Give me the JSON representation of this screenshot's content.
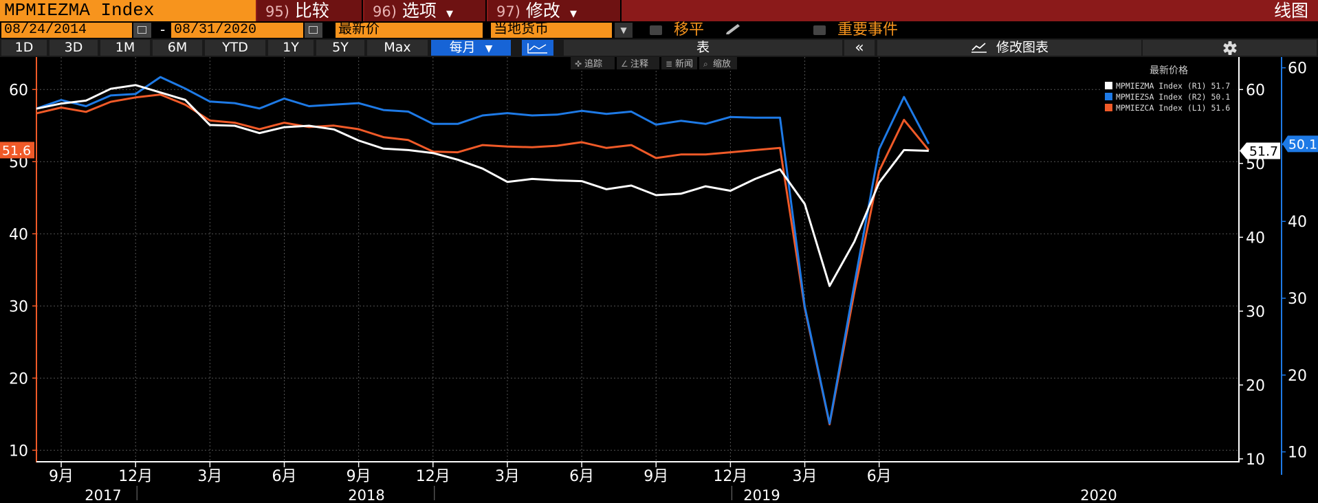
{
  "header": {
    "ticker": "MPMIEZMA Index",
    "menu": [
      {
        "num": "95)",
        "label": "比较",
        "dropdown": false
      },
      {
        "num": "96)",
        "label": "选项",
        "dropdown": true
      },
      {
        "num": "97)",
        "label": "修改",
        "dropdown": true
      }
    ],
    "title": "线图"
  },
  "controls": {
    "date_start": "08/24/2014",
    "date_sep": "-",
    "date_end": "08/31/2020",
    "price_field": "最新价",
    "currency": "当地货币",
    "smoothing_label": "移平",
    "events_label": "重要事件"
  },
  "toolbar": {
    "ranges": [
      "1D",
      "3D",
      "1M",
      "6M",
      "YTD",
      "1Y",
      "5Y",
      "Max"
    ],
    "frequency": "每月",
    "table_label": "表",
    "collapse": "«",
    "edit_chart": "修改图表",
    "tools": [
      "追踪",
      "注释",
      "新闻",
      "缩放"
    ]
  },
  "colors": {
    "white": "#ffffff",
    "blue": "#1e7ae6",
    "orange": "#f05a28",
    "accent": "#f7941d",
    "bar": "#8b1a1a"
  },
  "chart_data": {
    "type": "line",
    "legend_title": "最新价格",
    "legend_position": "top-right",
    "x": [
      "2017-08",
      "2017-09",
      "2017-10",
      "2017-11",
      "2017-12",
      "2018-01",
      "2018-02",
      "2018-03",
      "2018-04",
      "2018-05",
      "2018-06",
      "2018-07",
      "2018-08",
      "2018-09",
      "2018-10",
      "2018-11",
      "2018-12",
      "2019-01",
      "2019-02",
      "2019-03",
      "2019-04",
      "2019-05",
      "2019-06",
      "2019-07",
      "2019-08",
      "2019-09",
      "2019-10",
      "2019-11",
      "2019-12",
      "2020-01",
      "2020-02",
      "2020-03",
      "2020-04",
      "2020-05",
      "2020-06",
      "2020-07",
      "2020-08"
    ],
    "x_tick_labels": [
      {
        "x": "2017-09",
        "label": "9月"
      },
      {
        "x": "2017-12",
        "label": "12月"
      },
      {
        "x": "2018-03",
        "label": "3月"
      },
      {
        "x": "2018-06",
        "label": "6月"
      },
      {
        "x": "2018-09",
        "label": "9月"
      },
      {
        "x": "2018-12",
        "label": "12月"
      },
      {
        "x": "2019-03",
        "label": "3月"
      },
      {
        "x": "2019-06",
        "label": "6月"
      },
      {
        "x": "2019-09",
        "label": "9月"
      },
      {
        "x": "2019-12",
        "label": "12月"
      },
      {
        "x": "2020-03",
        "label": "3月"
      },
      {
        "x": "2020-06",
        "label": "6月"
      }
    ],
    "x_year_labels": [
      "2017",
      "2018",
      "2019",
      "2020"
    ],
    "axes": {
      "L1": {
        "min": 8.5,
        "max": 64.5,
        "ticks": [
          10,
          20,
          30,
          40,
          50,
          60
        ],
        "color": "#f05a28"
      },
      "R1": {
        "min": 9.7,
        "max": 64.4,
        "ticks": [
          10,
          20,
          30,
          40,
          50,
          60
        ],
        "color": "#ffffff"
      },
      "R2": {
        "min": 8.8,
        "max": 61.4,
        "ticks": [
          10,
          20,
          30,
          40,
          50,
          60
        ],
        "color": "#1e7ae6"
      }
    },
    "grid": true,
    "series": [
      {
        "name": "MPMIEZMA Index",
        "axis": "R1",
        "axis_label": "(R1)",
        "last": "51.7",
        "color": "#ffffff",
        "values": [
          57.4,
          58.1,
          58.5,
          60.1,
          60.6,
          59.6,
          58.6,
          55.2,
          55.1,
          54.1,
          54.9,
          55.1,
          54.6,
          53.1,
          52.0,
          51.8,
          51.4,
          50.5,
          49.3,
          47.5,
          47.9,
          47.7,
          47.6,
          46.5,
          47.0,
          45.7,
          45.9,
          46.9,
          46.3,
          47.9,
          49.2,
          44.5,
          33.4,
          39.4,
          47.4,
          51.8,
          51.7
        ]
      },
      {
        "name": "MPMIEZSA Index",
        "axis": "R2",
        "axis_label": "(R2)",
        "last": "50.1",
        "color": "#1e7ae6",
        "values": [
          54.7,
          55.8,
          55.0,
          56.4,
          56.6,
          58.8,
          57.3,
          55.6,
          55.4,
          54.7,
          56.0,
          55.0,
          55.2,
          55.4,
          54.5,
          54.3,
          52.7,
          52.7,
          53.8,
          54.1,
          53.8,
          53.9,
          54.4,
          54.0,
          54.3,
          52.6,
          53.1,
          52.7,
          53.6,
          53.5,
          53.5,
          28.9,
          13.7,
          31.8,
          49.4,
          56.2,
          50.1
        ]
      },
      {
        "name": "MPMIEZCA Index",
        "axis": "L1",
        "axis_label": "(L1)",
        "last": "51.6",
        "color": "#f05a28",
        "values": [
          56.7,
          57.5,
          56.9,
          58.3,
          58.9,
          59.3,
          57.9,
          55.7,
          55.4,
          54.5,
          55.4,
          54.8,
          55.0,
          54.5,
          53.4,
          53.0,
          51.4,
          51.3,
          52.3,
          52.1,
          52.0,
          52.2,
          52.7,
          51.9,
          52.3,
          50.5,
          51.0,
          51.0,
          51.3,
          51.6,
          51.9,
          29.7,
          13.6,
          31.9,
          48.7,
          55.8,
          51.6
        ]
      }
    ]
  }
}
